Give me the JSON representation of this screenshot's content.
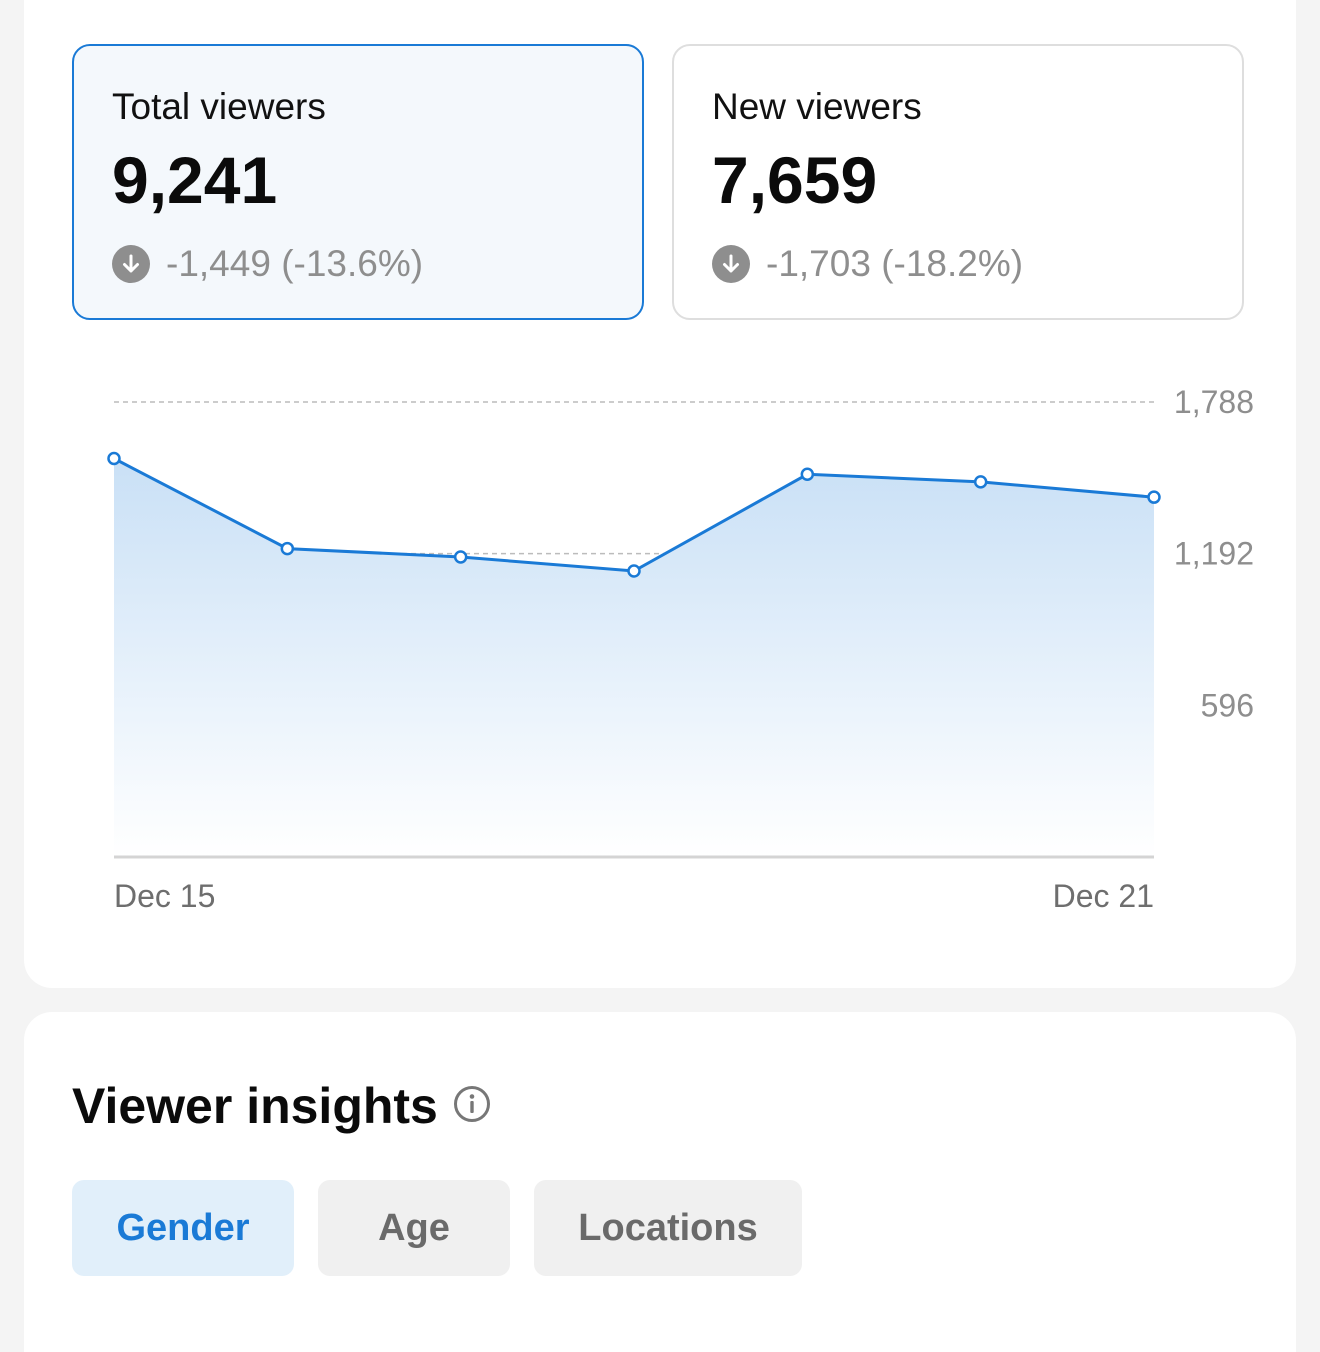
{
  "colors": {
    "accent": "#1a7ad6",
    "muted": "#8e8e8e",
    "selected_bg": "#f4f8fc"
  },
  "metrics": [
    {
      "label": "Total viewers",
      "value": "9,241",
      "delta": "-1,449 (-13.6%)",
      "trend": "down",
      "selected": true
    },
    {
      "label": "New viewers",
      "value": "7,659",
      "delta": "-1,703 (-18.2%)",
      "trend": "down",
      "selected": false
    }
  ],
  "chart_data": {
    "type": "area",
    "x": [
      "Dec 15",
      "Dec 16",
      "Dec 17",
      "Dec 18",
      "Dec 19",
      "Dec 20",
      "Dec 21"
    ],
    "values": [
      1566,
      1212,
      1179,
      1124,
      1504,
      1474,
      1414
    ],
    "x_tick_labels": [
      "Dec 15",
      "Dec 21"
    ],
    "y_ticks": [
      596,
      1192,
      1788
    ],
    "y_tick_labels": [
      "596",
      "1,192",
      "1,788"
    ],
    "ylim": [
      0,
      1788
    ],
    "grid": true,
    "y_axis_position": "right",
    "line_color": "#1a7ad6"
  },
  "insights": {
    "title": "Viewer insights",
    "info_icon": "info-icon",
    "tabs": [
      {
        "label": "Gender",
        "active": true
      },
      {
        "label": "Age",
        "active": false
      },
      {
        "label": "Locations",
        "active": false
      }
    ]
  }
}
